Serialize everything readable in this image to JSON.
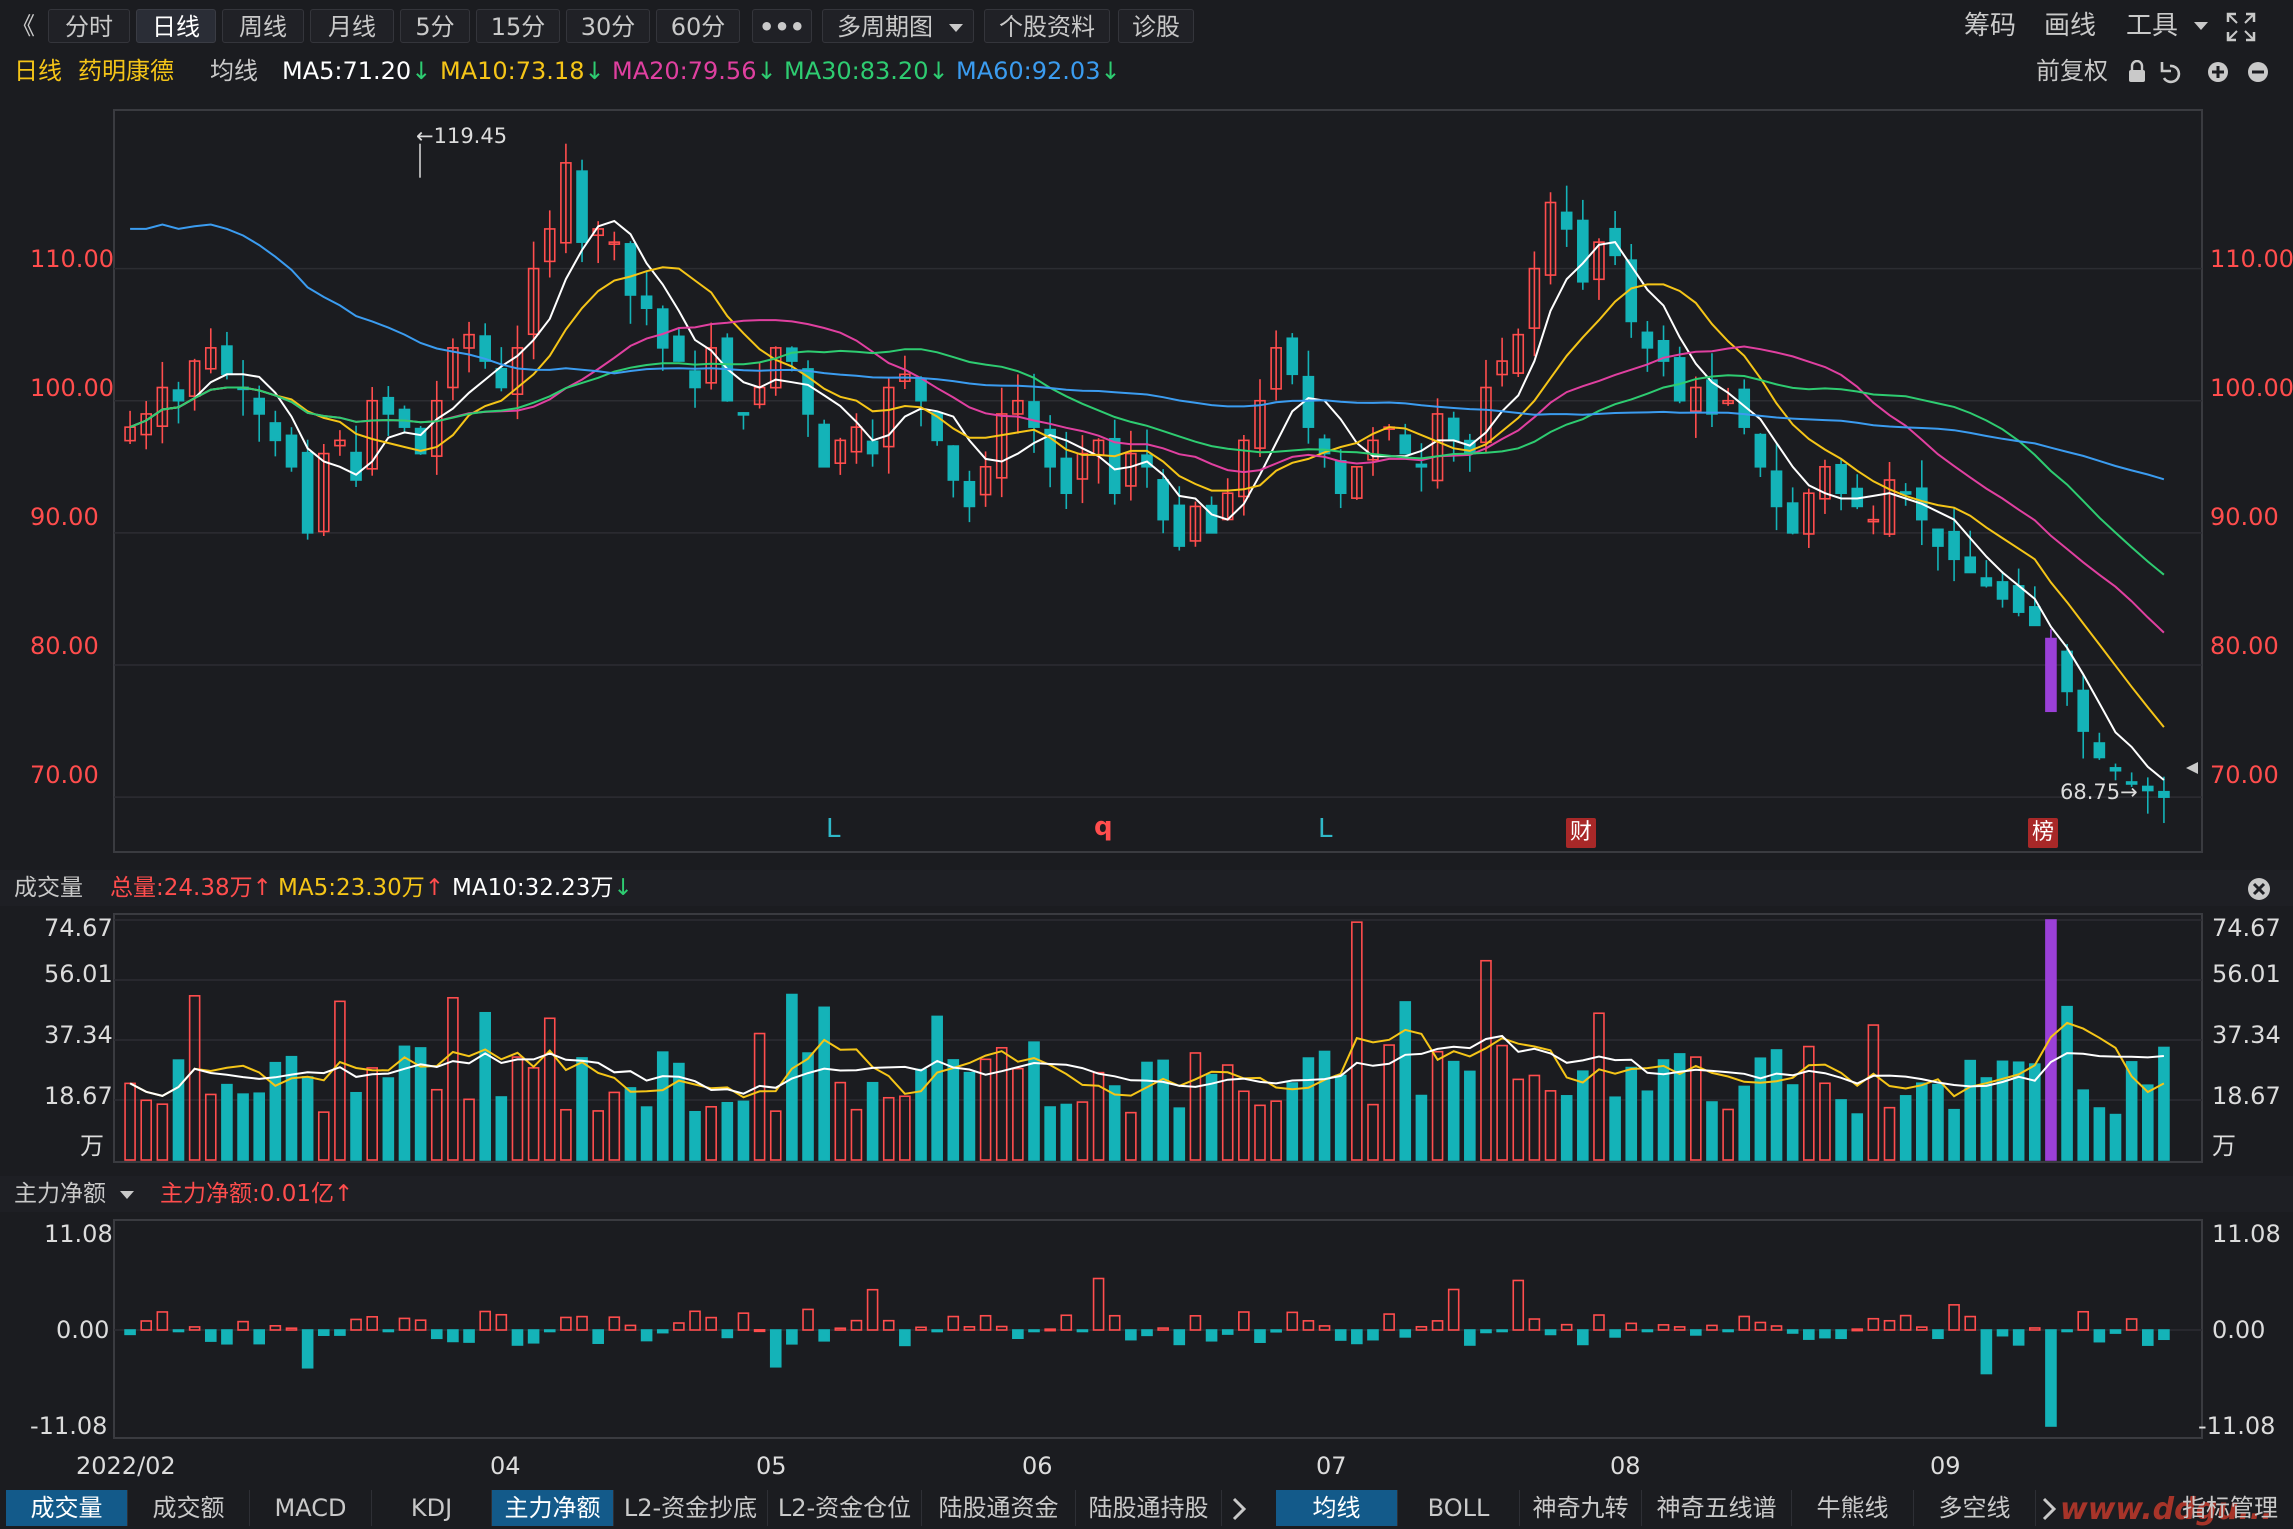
{
  "toolbar": {
    "back_glyph": "《",
    "periods": [
      "分时",
      "日线",
      "周线",
      "月线",
      "5分",
      "15分",
      "30分",
      "60分"
    ],
    "active_period": "日线",
    "more": "•••",
    "multi_period": "多周期图",
    "stock_info": "个股资料",
    "diagnose": "诊股",
    "right": {
      "chips": "筹码",
      "draw": "画线",
      "tools": "工具"
    }
  },
  "info": {
    "period": "日线",
    "stock_name": "药明康德",
    "ma_label": "均线",
    "ma5": "MA5:71.20",
    "ma10": "MA10:73.18",
    "ma20": "MA20:79.56",
    "ma30": "MA30:83.20",
    "ma60": "MA60:92.03",
    "adjust": "前复权"
  },
  "price_axis": {
    "ticks": [
      "110.00",
      "100.00",
      "90.00",
      "80.00",
      "70.00"
    ]
  },
  "price_annotations": {
    "high": "←119.45",
    "low": "68.75→"
  },
  "event_markers": [
    {
      "text": "L",
      "color": "#2fb8c8"
    },
    {
      "text": "q",
      "color": "#ff4d4d"
    },
    {
      "text": "L",
      "color": "#2fb8c8"
    },
    {
      "text": "财",
      "color": "#ffffff"
    },
    {
      "text": "榜",
      "color": "#ffffff"
    }
  ],
  "volume": {
    "title": "成交量",
    "total": "总量:24.38万",
    "ma5": "MA5:23.30万",
    "ma10": "MA10:32.23万",
    "ticks": [
      "74.67",
      "56.01",
      "37.34",
      "18.67"
    ],
    "unit": "万"
  },
  "capital": {
    "title": "主力净额",
    "value": "主力净额:0.01亿",
    "ticks": [
      "11.08",
      "0.00",
      "-11.08"
    ]
  },
  "x_axis": {
    "labels": [
      "2022/02",
      "04",
      "05",
      "06",
      "07",
      "08",
      "09"
    ]
  },
  "bottom_tabs_left": [
    "成交量",
    "成交额",
    "MACD",
    "KDJ",
    "主力净额",
    "L2-资金抄底",
    "L2-资金仓位",
    "陆股通资金",
    "陆股通持股"
  ],
  "bottom_tabs_right": [
    "均线",
    "BOLL",
    "神奇九转",
    "神奇五线谱",
    "牛熊线",
    "多空线"
  ],
  "bottom_right": "指标管理",
  "watermark": "www.ddgu...",
  "colors": {
    "up": "#ff4d4d",
    "down": "#14b3b8",
    "ma5": "#ffffff",
    "ma10": "#f5c518",
    "ma20": "#e040a0",
    "ma30": "#2ecc71",
    "ma60": "#3b9cf0",
    "highlight": "#9b40d8"
  },
  "chart_data": {
    "type": "candlestick",
    "title": "药明康德 日线",
    "x_range": [
      "2022/02",
      "2022/09"
    ],
    "ylim": [
      66,
      122
    ],
    "high": 119.45,
    "low": 68.75,
    "closes": [
      98,
      99,
      101,
      100,
      103,
      104,
      102,
      101,
      99,
      97,
      95,
      90,
      96,
      97,
      94,
      100,
      99,
      98,
      96,
      100,
      104,
      105,
      103,
      101,
      104,
      110,
      113,
      118,
      112,
      113,
      112,
      108,
      107,
      104,
      103,
      101,
      104,
      100,
      99,
      101,
      104,
      103,
      99,
      95,
      97,
      98,
      96,
      101,
      102,
      100,
      97,
      94,
      92,
      95,
      99,
      100,
      98,
      95,
      93,
      96,
      97,
      93,
      96,
      95,
      91,
      89,
      92,
      90,
      93,
      97,
      100,
      104,
      102,
      98,
      96,
      93,
      95,
      97,
      98,
      96,
      95,
      99,
      97,
      96,
      101,
      103,
      105,
      110,
      115,
      113,
      109,
      112,
      111,
      106,
      104,
      103,
      100,
      101,
      99,
      100,
      98,
      95,
      92,
      90,
      93,
      95,
      93,
      92,
      91,
      94,
      93,
      91,
      89,
      88,
      87,
      86,
      85,
      84,
      83,
      82,
      78,
      75,
      73,
      72,
      71,
      70.5,
      70
    ]
  }
}
